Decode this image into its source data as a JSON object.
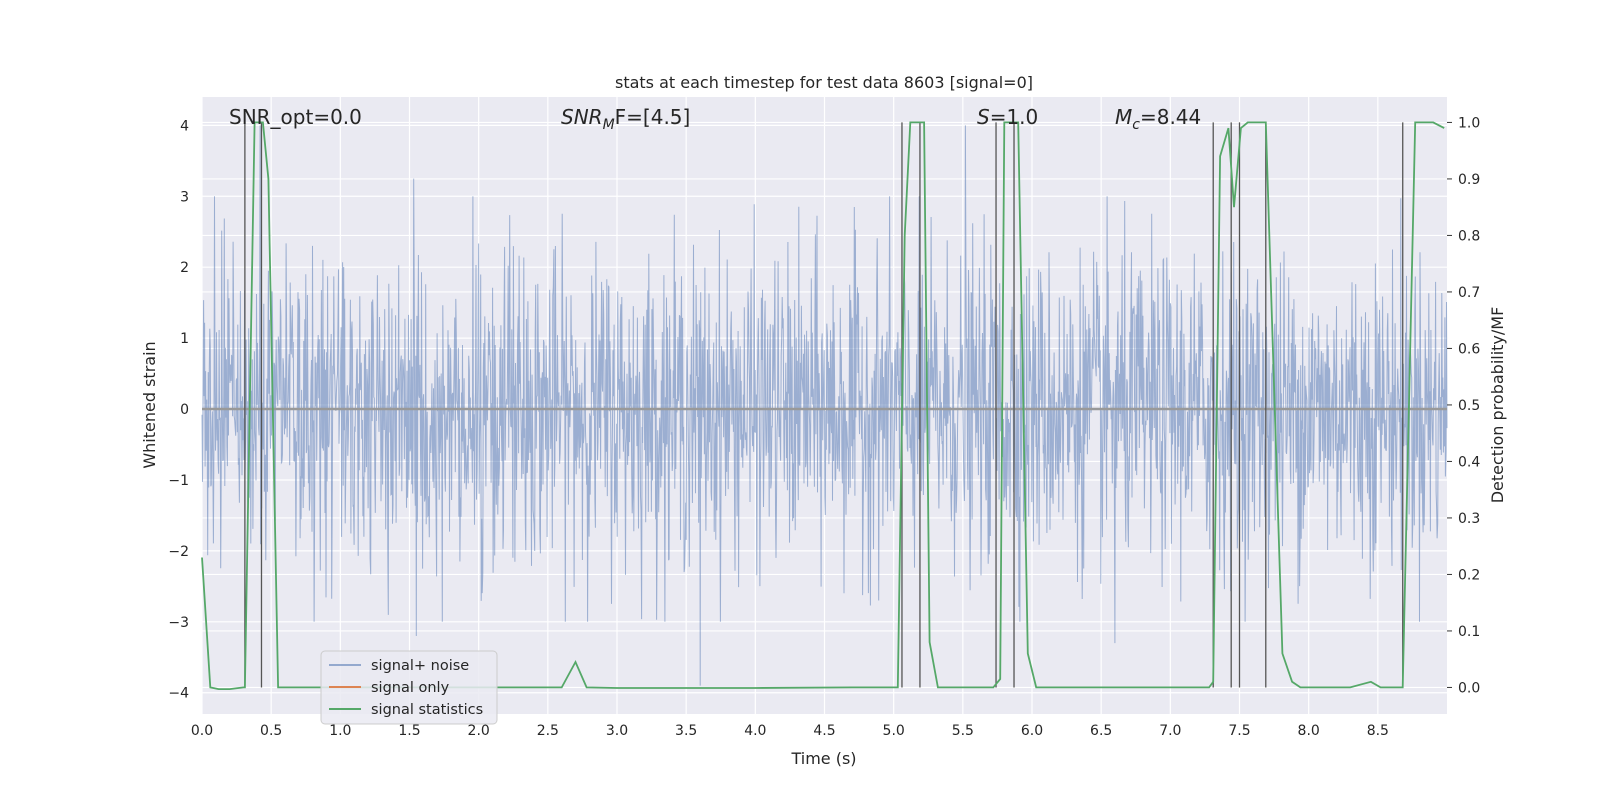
{
  "chart_data": {
    "type": "line",
    "title": "stats at each timestep for test data 8603 [signal=0]",
    "xlabel": "Time (s)",
    "ylabel": "Whitened strain",
    "ylabel_right": "Detection probability/MF",
    "xlim": [
      0,
      9.0
    ],
    "ylim": [
      -4.3,
      4.4
    ],
    "ylim_right": [
      -0.047,
      1.045
    ],
    "xticks": [
      "0.0",
      "0.5",
      "1.0",
      "1.5",
      "2.0",
      "2.5",
      "3.0",
      "3.5",
      "4.0",
      "4.5",
      "5.0",
      "5.5",
      "6.0",
      "6.5",
      "7.0",
      "7.5",
      "8.0",
      "8.5"
    ],
    "yticks": [
      "4",
      "3",
      "2",
      "1",
      "0",
      "−1",
      "−2",
      "−3",
      "−4"
    ],
    "yticks_right": [
      "1.0",
      "0.9",
      "0.8",
      "0.7",
      "0.6",
      "0.5",
      "0.4",
      "0.3",
      "0.2",
      "0.1",
      "0.0"
    ],
    "grid": true,
    "legend_position": "lower-left",
    "annotations": {
      "snr_opt": "SNR_opt=0.0",
      "snr_mf_main": "SNR",
      "snr_mf_sub": "M",
      "snr_mf_rest": "F=[4.5]",
      "s_main": "S",
      "s_rest": "=1.0",
      "mc_main": "M",
      "mc_sub": "c",
      "mc_rest": "=8.44"
    },
    "series": [
      {
        "name": "signal+ noise",
        "color": "#4c72b0",
        "description_values": "whitened noise strain, approx. normal, range about -3.3 to 4.0",
        "peaks": [
          [
            0.42,
            4.0
          ],
          [
            1.53,
            3.25
          ],
          [
            5.52,
            4.0
          ],
          [
            6.6,
            -3.3
          ],
          [
            3.6,
            -3.9
          ],
          [
            1.55,
            -3.2
          ]
        ]
      },
      {
        "name": "signal only",
        "color": "#dd8452",
        "values_constant": 0.0
      },
      {
        "name": "signal statistics",
        "color": "#55a868",
        "axis": "right",
        "x": [
          0.0,
          0.06,
          0.12,
          0.2,
          0.3,
          0.31,
          0.38,
          0.44,
          0.48,
          0.55,
          1.0,
          2.0,
          2.6,
          2.7,
          2.78,
          3.0,
          4.0,
          4.7,
          5.0,
          5.03,
          5.08,
          5.12,
          5.18,
          5.22,
          5.26,
          5.32,
          5.6,
          5.72,
          5.77,
          5.8,
          5.86,
          5.9,
          5.97,
          6.03,
          6.5,
          7.0,
          7.28,
          7.31,
          7.36,
          7.42,
          7.46,
          7.51,
          7.56,
          7.64,
          7.69,
          7.81,
          7.88,
          7.94,
          8.0,
          8.3,
          8.45,
          8.52,
          8.6,
          8.68,
          8.77,
          8.9,
          8.98
        ],
        "y": [
          0.23,
          0.0,
          -0.003,
          -0.003,
          0.0,
          0.0,
          1.0,
          1.0,
          0.9,
          0.0,
          0.0,
          0.0,
          0.0,
          0.045,
          0.0,
          -0.001,
          -0.001,
          0.0,
          0.0,
          0.0,
          0.8,
          1.0,
          1.0,
          1.0,
          0.08,
          0.0,
          0.0,
          0.0,
          0.015,
          1.0,
          1.0,
          1.0,
          0.06,
          0.0,
          0.0,
          0.0,
          0.0,
          0.01,
          0.94,
          0.99,
          0.85,
          0.99,
          1.0,
          1.0,
          1.0,
          0.06,
          0.01,
          0.0,
          0.0,
          0.0,
          0.01,
          0.0,
          0.0,
          0.0,
          1.0,
          1.0,
          0.99
        ]
      }
    ],
    "detection_lines_x": [
      0.31,
      0.43,
      5.06,
      5.19,
      5.74,
      5.87,
      7.31,
      7.44,
      7.5,
      7.69,
      8.68
    ]
  }
}
